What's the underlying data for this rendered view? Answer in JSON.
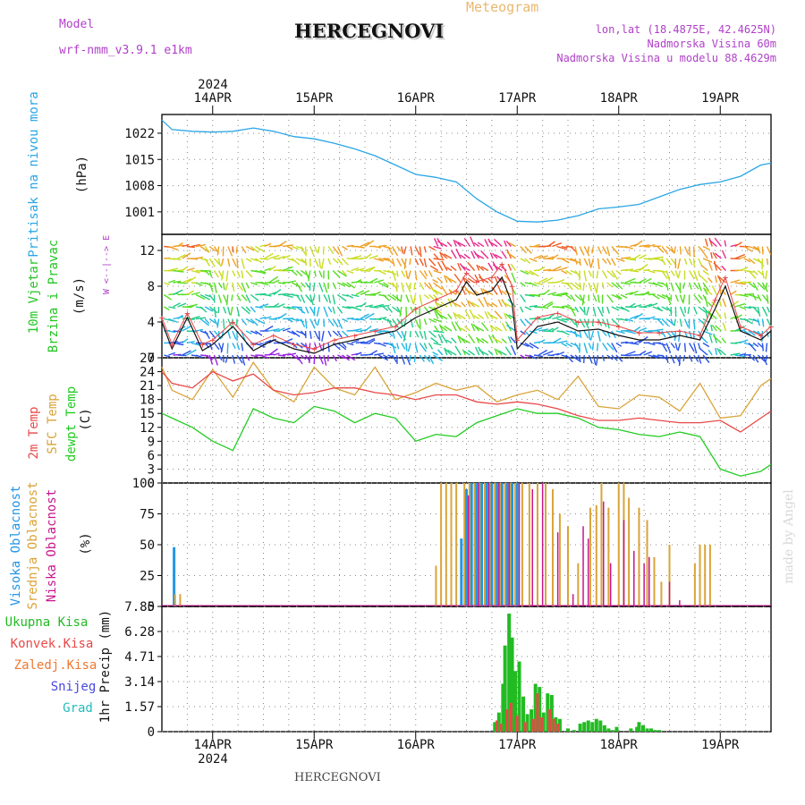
{
  "header": {
    "model_label": "Model",
    "model_name": "wrf-nmm_v3.9.1 e1km",
    "station": "HERCEGNOVI",
    "product": "Meteogram",
    "lonlat": "lon,lat (18.4875E, 42.4625N)",
    "elevation": "Nadmorska Visina 60m",
    "model_elevation": "Nadmorska Visina u modelu 88.4629m",
    "footer_station": "HERCEGNOVI",
    "credit": "made by Angel",
    "year": "2024"
  },
  "colors": {
    "pressure": "#2aa6e6",
    "wind_label": "#22c622",
    "temp_2m": "#e84848",
    "temp_sfc": "#d9a43a",
    "dewpoint": "#22cc22",
    "cloud_high": "#2196e6",
    "cloud_mid": "#d9a43a",
    "cloud_low": "#c8168c",
    "precip_total": "#22bb22",
    "precip_conv": "#e84848",
    "precip_frz": "#f07830",
    "precip_snow": "#4848e0",
    "precip_grad": "#22bbbb",
    "header_purple": "#b040c8",
    "header_orange": "#e8b870"
  },
  "chart_data": [
    {
      "type": "line",
      "panel": "pressure",
      "ylabel": [
        "Pritisak na nivou mora",
        "(hPa)"
      ],
      "yticks": [
        1001,
        1008,
        1015,
        1022
      ],
      "ylim": [
        995,
        1027
      ],
      "x_start_day": 13.5,
      "x_end_day": 19.5,
      "xticks": [
        "14APR",
        "15APR",
        "16APR",
        "17APR",
        "18APR",
        "19APR"
      ],
      "x": [
        13.5,
        13.6,
        13.8,
        14.0,
        14.2,
        14.4,
        14.6,
        14.8,
        15.0,
        15.2,
        15.4,
        15.6,
        15.8,
        16.0,
        16.2,
        16.4,
        16.6,
        16.8,
        17.0,
        17.2,
        17.4,
        17.6,
        17.8,
        18.0,
        18.2,
        18.4,
        18.6,
        18.8,
        19.0,
        19.2,
        19.4,
        19.5
      ],
      "series": [
        {
          "values": [
            1025.5,
            1023.0,
            1022.5,
            1022.3,
            1022.5,
            1023.4,
            1022.5,
            1021.1,
            1020.5,
            1019.3,
            1017.8,
            1016.0,
            1013.5,
            1011.0,
            1010.2,
            1009.0,
            1004.5,
            1001.0,
            998.5,
            998.3,
            998.8,
            1000.0,
            1001.8,
            1002.3,
            1003.0,
            1005.0,
            1007.0,
            1008.3,
            1009.0,
            1010.5,
            1013.5,
            1014.0
          ]
        }
      ]
    },
    {
      "type": "line",
      "panel": "wind",
      "ylabel": [
        "10m Vjetar",
        "Brzina i Pravac",
        "(m/s)"
      ],
      "compass": "W <--|--> E",
      "yticks": [
        0,
        4,
        8,
        12
      ],
      "ylim": [
        0,
        13.8
      ],
      "x": [
        13.5,
        13.6,
        13.75,
        13.9,
        14.0,
        14.2,
        14.4,
        14.6,
        14.8,
        15.0,
        15.2,
        15.4,
        15.6,
        15.8,
        16.0,
        16.2,
        16.4,
        16.5,
        16.6,
        16.75,
        16.85,
        16.95,
        17.0,
        17.2,
        17.4,
        17.6,
        17.8,
        18.0,
        18.2,
        18.4,
        18.6,
        18.8,
        18.95,
        19.05,
        19.2,
        19.4,
        19.5
      ],
      "series": [
        {
          "name": "speed",
          "values": [
            4.0,
            1.0,
            4.5,
            0.8,
            1.5,
            3.5,
            0.8,
            2.0,
            1.0,
            0.5,
            1.5,
            2.0,
            2.5,
            3.0,
            4.5,
            5.5,
            6.5,
            8.5,
            7.0,
            7.5,
            9.0,
            6.0,
            1.0,
            3.5,
            4.0,
            3.0,
            3.2,
            2.5,
            2.0,
            2.0,
            2.5,
            2.0,
            5.5,
            8.0,
            3.0,
            2.0,
            3.0
          ]
        },
        {
          "name": "gust",
          "values": [
            4.5,
            1.5,
            5.0,
            1.5,
            2.0,
            4.0,
            1.5,
            2.5,
            1.5,
            1.0,
            2.0,
            2.5,
            3.0,
            3.5,
            5.5,
            6.5,
            7.5,
            9.5,
            8.5,
            9.0,
            10.5,
            8.0,
            2.0,
            4.5,
            5.0,
            4.0,
            4.0,
            3.5,
            2.8,
            2.8,
            3.0,
            2.5,
            6.5,
            9.0,
            3.5,
            2.5,
            3.5
          ]
        }
      ]
    },
    {
      "type": "line",
      "panel": "temperature",
      "ylabel": [
        "2m Temp",
        "SFC Temp",
        "dewpt Temp",
        "(C)"
      ],
      "yticks": [
        0,
        3,
        6,
        9,
        12,
        15,
        18,
        21,
        24,
        27
      ],
      "ylim": [
        0,
        27
      ],
      "x": [
        13.5,
        13.6,
        13.8,
        14.0,
        14.2,
        14.4,
        14.6,
        14.8,
        15.0,
        15.2,
        15.4,
        15.6,
        15.8,
        16.0,
        16.2,
        16.4,
        16.6,
        16.8,
        17.0,
        17.2,
        17.4,
        17.6,
        17.8,
        18.0,
        18.2,
        18.4,
        18.6,
        18.8,
        19.0,
        19.2,
        19.4,
        19.5
      ],
      "series": [
        {
          "name": "2m Temp",
          "values": [
            24.0,
            21.5,
            20.5,
            24.0,
            22.0,
            23.5,
            20.0,
            19.0,
            19.5,
            20.5,
            20.5,
            19.5,
            19.0,
            18.0,
            19.0,
            19.0,
            17.5,
            17.0,
            17.5,
            17.0,
            16.0,
            14.5,
            13.5,
            13.5,
            14.0,
            13.5,
            13.0,
            13.0,
            13.5,
            11.0,
            14.0,
            15.5
          ]
        },
        {
          "name": "SFC Temp",
          "values": [
            25.0,
            20.0,
            18.0,
            24.5,
            18.5,
            26.0,
            20.0,
            17.5,
            25.0,
            20.5,
            19.0,
            25.0,
            18.0,
            19.5,
            21.5,
            20.0,
            21.0,
            17.5,
            19.0,
            20.0,
            18.0,
            23.0,
            16.5,
            16.0,
            19.0,
            18.5,
            15.5,
            21.5,
            14.0,
            14.5,
            21.0,
            22.5
          ]
        },
        {
          "name": "dewpt Temp",
          "values": [
            15.0,
            14.0,
            12.0,
            9.0,
            7.0,
            16.0,
            14.0,
            13.0,
            16.5,
            15.5,
            13.0,
            15.0,
            14.0,
            9.0,
            10.5,
            10.0,
            13.0,
            14.5,
            16.0,
            15.0,
            15.0,
            14.0,
            12.0,
            11.5,
            10.5,
            10.0,
            11.0,
            10.0,
            3.0,
            1.5,
            2.5,
            4.0
          ]
        }
      ]
    },
    {
      "type": "bar",
      "panel": "clouds",
      "ylabel": [
        "Visoka Oblacnost",
        "Srednja Oblacnost",
        "Niska Oblacnost",
        "(%)"
      ],
      "yticks": [
        0,
        25,
        50,
        75,
        100
      ],
      "ylim": [
        0,
        100
      ],
      "series": [
        {
          "name": "Visoka Oblacnost",
          "x": [
            13.62,
            16.45,
            16.5,
            16.55,
            16.6,
            16.65,
            16.7,
            16.75,
            16.8,
            16.85,
            16.9,
            16.95,
            17.0
          ],
          "values": [
            48,
            55,
            95,
            100,
            100,
            100,
            100,
            100,
            100,
            100,
            100,
            100,
            100
          ]
        },
        {
          "name": "Srednja Oblacnost",
          "x": [
            13.63,
            13.68,
            16.2,
            16.25,
            16.3,
            16.35,
            16.4,
            16.48,
            16.53,
            16.58,
            16.63,
            16.68,
            16.73,
            16.78,
            16.83,
            16.88,
            16.93,
            16.98,
            17.05,
            17.12,
            17.2,
            17.28,
            17.35,
            17.42,
            17.5,
            17.6,
            17.72,
            17.78,
            17.83,
            17.9,
            18.0,
            18.05,
            18.1,
            18.2,
            18.28,
            18.35,
            18.42,
            18.5,
            18.75,
            18.8,
            18.85,
            18.9
          ],
          "values": [
            10,
            10,
            33,
            100,
            100,
            100,
            100,
            100,
            100,
            100,
            100,
            100,
            100,
            100,
            100,
            100,
            100,
            100,
            100,
            100,
            100,
            100,
            95,
            75,
            65,
            35,
            80,
            82,
            100,
            80,
            100,
            100,
            88,
            80,
            70,
            40,
            20,
            50,
            35,
            50,
            50,
            50
          ]
        },
        {
          "name": "Niska Oblacnost",
          "x": [
            16.52,
            16.62,
            16.72,
            16.82,
            16.92,
            17.02,
            17.15,
            17.25,
            17.4,
            17.55,
            17.65,
            17.7,
            17.85,
            17.92,
            18.05,
            18.15,
            18.25,
            18.3,
            18.5,
            18.6
          ],
          "values": [
            90,
            100,
            100,
            100,
            100,
            100,
            95,
            100,
            60,
            10,
            65,
            55,
            85,
            35,
            70,
            45,
            35,
            40,
            20,
            5
          ]
        }
      ]
    },
    {
      "type": "bar",
      "panel": "precipitation",
      "ylabel": [
        "1hr Precip (mm)"
      ],
      "legend": [
        "Ukupna Kisa",
        "Konvek.Kisa",
        "Zaledj.Kisa",
        "Snijeg",
        "Grad"
      ],
      "yticks": [
        0,
        1.57,
        3.14,
        4.71,
        6.28,
        7.85
      ],
      "ylim": [
        0,
        7.85
      ],
      "series": [
        {
          "name": "Ukupna Kisa",
          "x": [
            16.78,
            16.82,
            16.86,
            16.88,
            16.92,
            16.95,
            16.98,
            17.02,
            17.06,
            17.1,
            17.14,
            17.18,
            17.22,
            17.26,
            17.3,
            17.34,
            17.38,
            17.42,
            17.5,
            17.56,
            17.62,
            17.66,
            17.7,
            17.74,
            17.78,
            17.82,
            17.86,
            17.9,
            17.94,
            17.98,
            18.12,
            18.18,
            18.2,
            18.24,
            18.28,
            18.32,
            18.36,
            18.4
          ],
          "values": [
            0.6,
            1.2,
            3.0,
            5.4,
            7.4,
            5.9,
            3.8,
            4.4,
            2.2,
            1.1,
            1.4,
            3.0,
            2.8,
            1.2,
            2.4,
            2.3,
            0.9,
            0.8,
            0.2,
            0.1,
            0.5,
            0.6,
            0.7,
            0.6,
            0.8,
            0.7,
            0.4,
            0.2,
            0.1,
            0.3,
            0.2,
            0.3,
            0.6,
            0.4,
            0.2,
            0.2,
            0.1,
            0.1
          ]
        },
        {
          "name": "Konvek.Kisa",
          "x": [
            16.8,
            16.84,
            16.9,
            16.94,
            17.0,
            17.08,
            17.16,
            17.2,
            17.24,
            17.32,
            17.36,
            17.4
          ],
          "values": [
            0.7,
            0.5,
            1.4,
            1.8,
            1.0,
            0.6,
            0.8,
            2.4,
            0.9,
            1.4,
            0.8,
            0.5
          ]
        }
      ]
    }
  ]
}
